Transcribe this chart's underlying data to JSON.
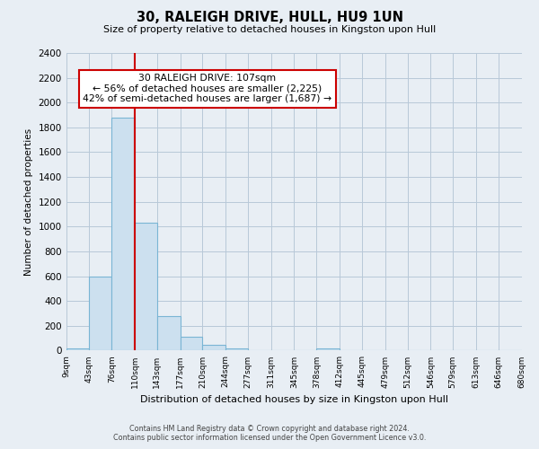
{
  "title": "30, RALEIGH DRIVE, HULL, HU9 1UN",
  "subtitle": "Size of property relative to detached houses in Kingston upon Hull",
  "xlabel": "Distribution of detached houses by size in Kingston upon Hull",
  "ylabel": "Number of detached properties",
  "bin_edges": [
    9,
    43,
    76,
    110,
    143,
    177,
    210,
    244,
    277,
    311,
    345,
    378,
    412,
    445,
    479,
    512,
    546,
    579,
    613,
    646,
    680
  ],
  "bar_heights": [
    20,
    600,
    1880,
    1030,
    280,
    110,
    45,
    20,
    0,
    0,
    0,
    20,
    0,
    0,
    0,
    0,
    0,
    0,
    0,
    0
  ],
  "bar_color": "#cce0ef",
  "bar_edge_color": "#7ab5d4",
  "vline_x": 110,
  "vline_color": "#cc0000",
  "annotation_text": "30 RALEIGH DRIVE: 107sqm\n← 56% of detached houses are smaller (2,225)\n42% of semi-detached houses are larger (1,687) →",
  "annotation_box_color": "white",
  "annotation_box_edge": "#cc0000",
  "ylim": [
    0,
    2400
  ],
  "yticks": [
    0,
    200,
    400,
    600,
    800,
    1000,
    1200,
    1400,
    1600,
    1800,
    2000,
    2200,
    2400
  ],
  "tick_labels": [
    "9sqm",
    "43sqm",
    "76sqm",
    "110sqm",
    "143sqm",
    "177sqm",
    "210sqm",
    "244sqm",
    "277sqm",
    "311sqm",
    "345sqm",
    "378sqm",
    "412sqm",
    "445sqm",
    "479sqm",
    "512sqm",
    "546sqm",
    "579sqm",
    "613sqm",
    "646sqm",
    "680sqm"
  ],
  "footer_line1": "Contains HM Land Registry data © Crown copyright and database right 2024.",
  "footer_line2": "Contains public sector information licensed under the Open Government Licence v3.0.",
  "bg_color": "#e8eef4",
  "plot_bg_color": "#e8eef4",
  "grid_color": "#b8c8d8"
}
